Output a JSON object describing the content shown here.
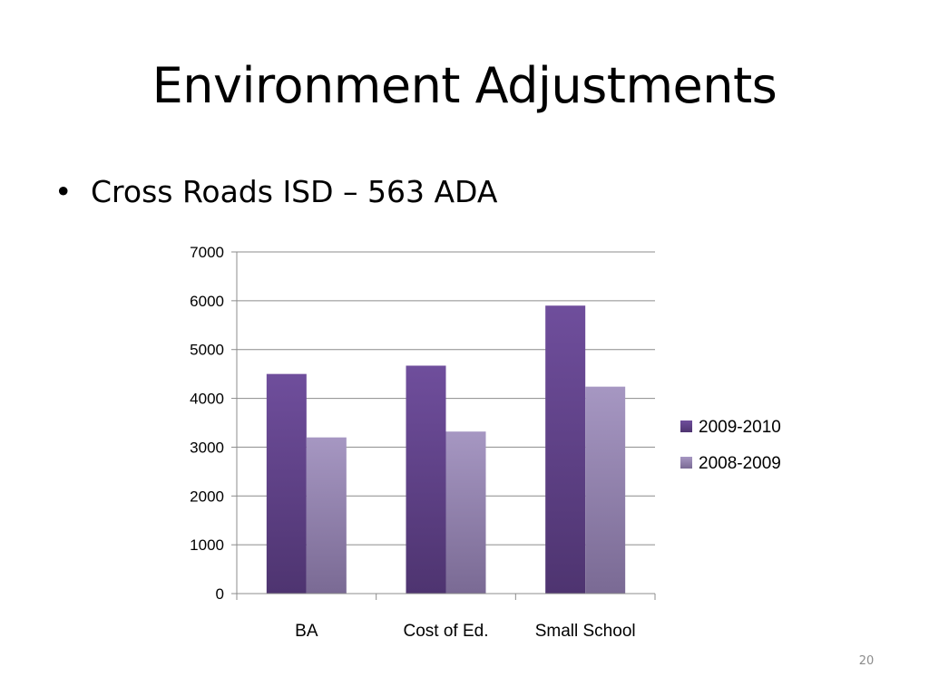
{
  "slide": {
    "title": "Environment Adjustments",
    "bullet_symbol": "•",
    "bullet_text": "Cross Roads ISD – 563 ADA",
    "page_number": "20"
  },
  "chart_data": {
    "type": "bar",
    "categories": [
      "BA",
      "Cost of Ed.",
      "Small School"
    ],
    "series": [
      {
        "name": "2009-2010",
        "values": [
          4500,
          4670,
          5900
        ],
        "color_top": "#6f4e9c",
        "color_bottom": "#4e3470"
      },
      {
        "name": "2008-2009",
        "values": [
          3200,
          3320,
          4240
        ],
        "color_top": "#a697c2",
        "color_bottom": "#7a6a94"
      }
    ],
    "ylim": [
      0,
      7000
    ],
    "yticks": [
      0,
      1000,
      2000,
      3000,
      4000,
      5000,
      6000,
      7000
    ],
    "grid": true,
    "legend": "right",
    "gridline_color": "#8c8c8c"
  }
}
